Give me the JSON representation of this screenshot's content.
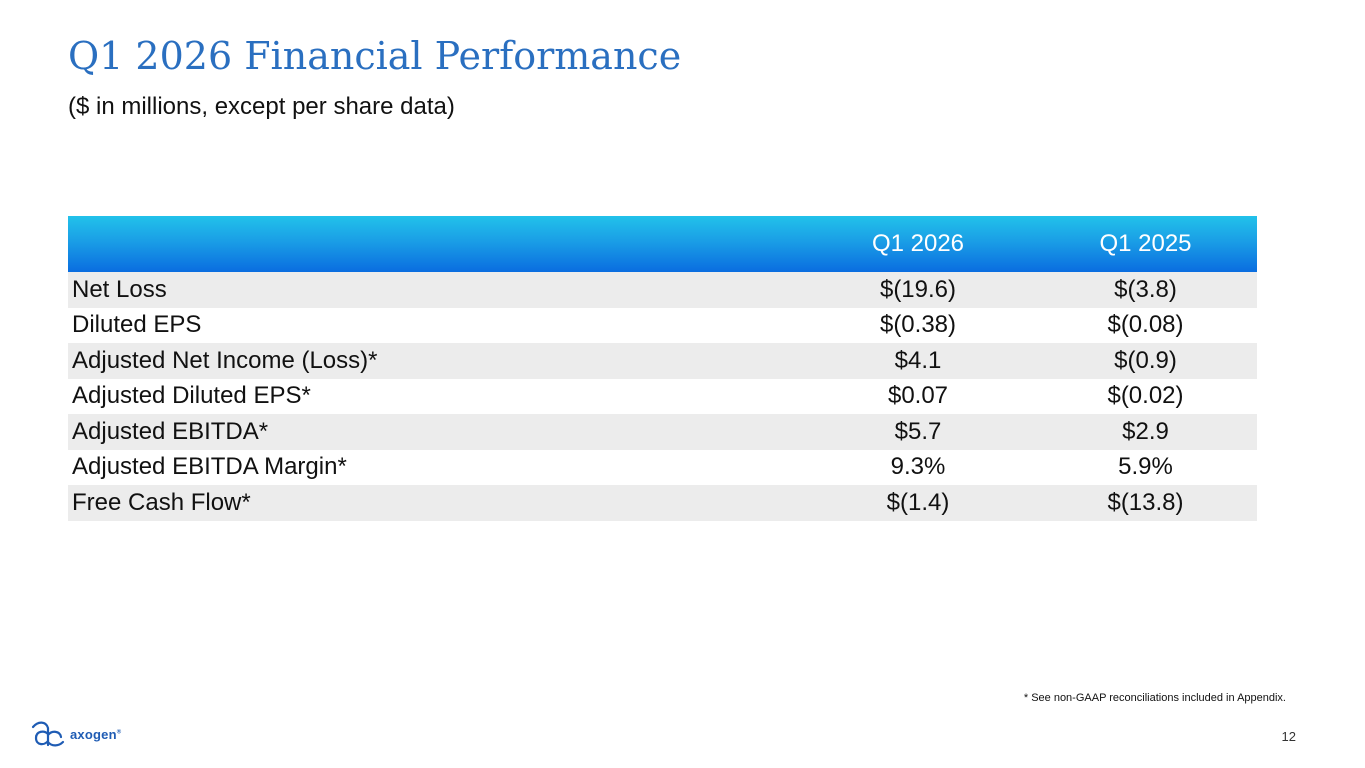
{
  "slide": {
    "title": "Q1 2026 Financial Performance",
    "subtitle": "($ in millions, except per share data)",
    "footnote": "* See non-GAAP reconciliations included in Appendix.",
    "page_number": "12",
    "brand": {
      "name": "axogen",
      "registered_mark": "®",
      "color": "#1f5cb4"
    },
    "colors": {
      "title": "#2a6fc0",
      "header_top": "#22c2ea",
      "header_bottom": "#0a6de0",
      "row_shade": "#ececec"
    }
  },
  "table": {
    "headers": [
      "",
      "Q1 2026",
      "Q1 2025"
    ],
    "rows": [
      {
        "label": "Net Loss",
        "q1_2026": "$(19.6)",
        "q1_2025": "$(3.8)"
      },
      {
        "label": "Diluted EPS",
        "q1_2026": "$(0.38)",
        "q1_2025": "$(0.08)"
      },
      {
        "label": "Adjusted Net Income (Loss)*",
        "q1_2026": "$4.1",
        "q1_2025": "$(0.9)"
      },
      {
        "label": "Adjusted Diluted EPS*",
        "q1_2026": "$0.07",
        "q1_2025": "$(0.02)"
      },
      {
        "label": "Adjusted EBITDA*",
        "q1_2026": "$5.7",
        "q1_2025": "$2.9"
      },
      {
        "label": "Adjusted EBITDA Margin*",
        "q1_2026": "9.3%",
        "q1_2025": "5.9%"
      },
      {
        "label": "Free Cash Flow*",
        "q1_2026": "$(1.4)",
        "q1_2025": "$(13.8)"
      }
    ]
  }
}
